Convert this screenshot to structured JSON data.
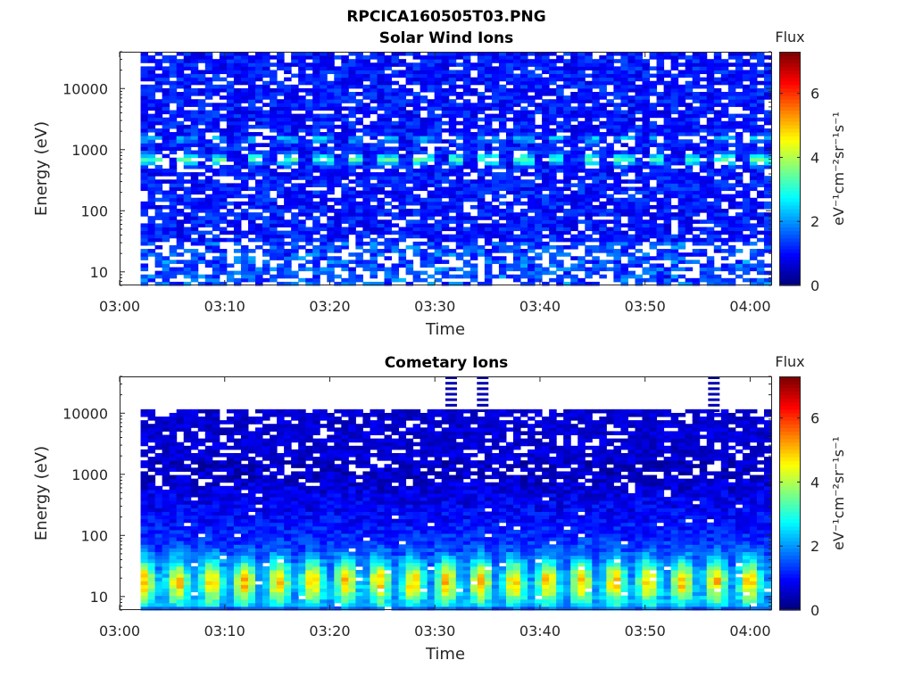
{
  "figure_title": "RPCICA160505T03.PNG",
  "colorbar_title": "Flux",
  "colorbar_label": "eV⁻¹cm⁻²sr⁻¹s⁻¹",
  "chart_data": [
    {
      "type": "heatmap",
      "title": "Solar Wind Ions",
      "xlabel": "Time",
      "ylabel": "Energy (eV)",
      "x_tick_labels": [
        "03:00",
        "03:10",
        "03:20",
        "03:30",
        "03:40",
        "03:50",
        "04:00"
      ],
      "xlim": [
        "03:00",
        "04:02"
      ],
      "data_time_range": [
        "03:02",
        "04:02"
      ],
      "y_scale": "log",
      "y_ticks": [
        10,
        100,
        1000,
        10000
      ],
      "y_tick_labels": [
        "10",
        "100",
        "1000",
        "10000"
      ],
      "ylim": [
        6,
        40000
      ],
      "colorbar": {
        "range": [
          0,
          7.3
        ],
        "ticks": [
          0,
          2,
          4,
          6
        ],
        "tick_labels": [
          "0",
          "2",
          "4",
          "6"
        ],
        "colormap": "jet"
      },
      "features": {
        "background_flux_typical": 1.0,
        "beam_energy_eV": 700,
        "beam_flux_peak": 3.4,
        "secondary_beam_energy_eV": 1500,
        "beam_period_minutes": 3.2,
        "low_energy_gaps_below_eV": 30
      }
    },
    {
      "type": "heatmap",
      "title": "Cometary Ions",
      "xlabel": "Time",
      "ylabel": "Energy (eV)",
      "x_tick_labels": [
        "03:00",
        "03:10",
        "03:20",
        "03:30",
        "03:40",
        "03:50",
        "04:00"
      ],
      "xlim": [
        "03:00",
        "04:02"
      ],
      "data_time_range": [
        "03:02",
        "04:02"
      ],
      "y_scale": "log",
      "y_ticks": [
        10,
        100,
        1000,
        10000
      ],
      "y_tick_labels": [
        "10",
        "100",
        "1000",
        "10000"
      ],
      "ylim": [
        6,
        40000
      ],
      "colorbar": {
        "range": [
          0,
          7.3
        ],
        "ticks": [
          0,
          2,
          4,
          6
        ],
        "tick_labels": [
          "0",
          "2",
          "4",
          "6"
        ],
        "colormap": "jet"
      },
      "features": {
        "upper_energy_limit_eV": 11000,
        "peak_energy_eV": 18,
        "peak_flux": 5.2,
        "peak_period_minutes": 3.2,
        "high_energy_spikes_times": [
          "03:31",
          "03:34",
          "03:56"
        ]
      }
    }
  ]
}
